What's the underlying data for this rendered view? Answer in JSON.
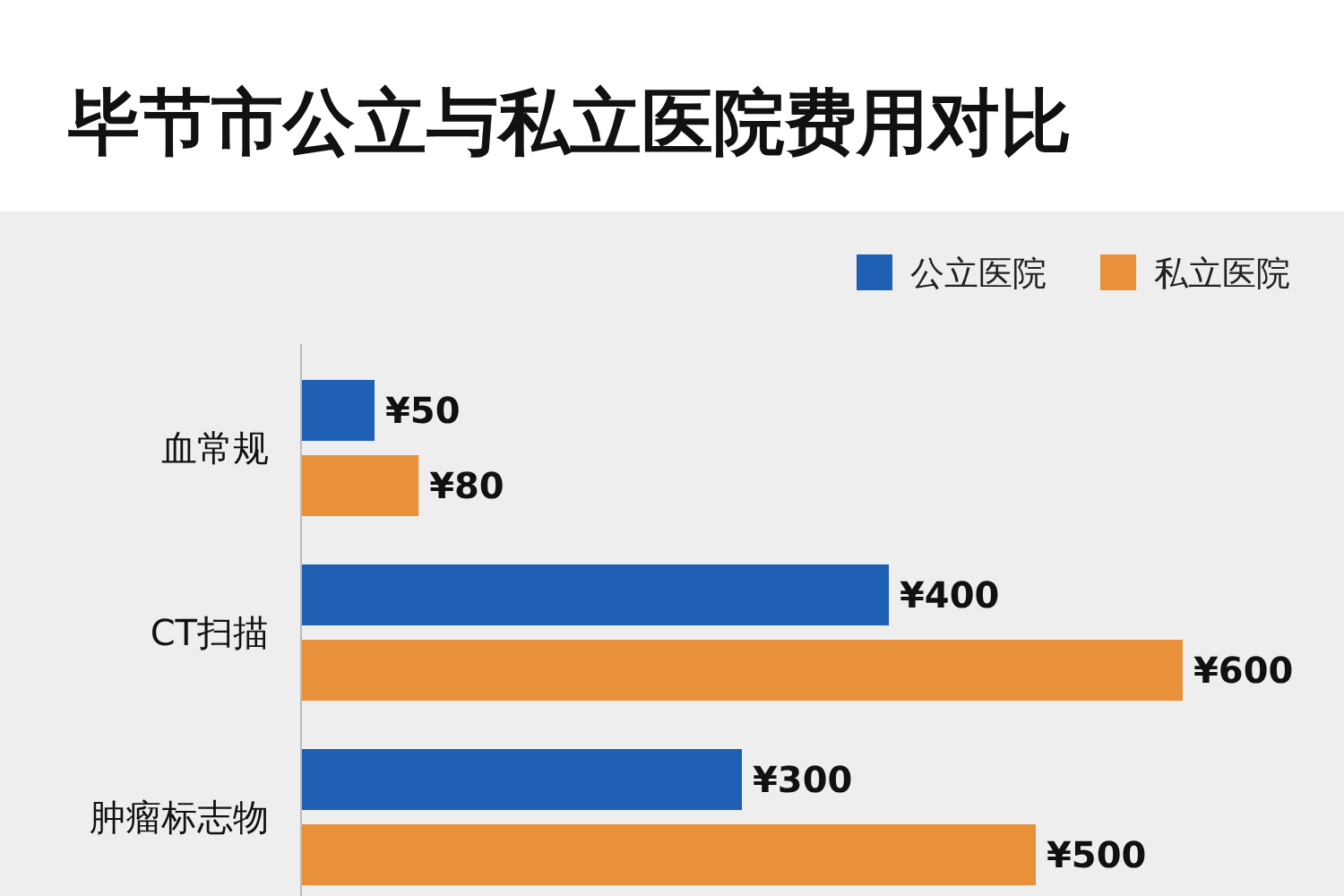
{
  "chart_data": {
    "type": "bar",
    "orientation": "horizontal",
    "title": "毕节市公立与私立医院费用对比",
    "categories": [
      "血常规",
      "CT扫描",
      "肿瘤标志物"
    ],
    "series": [
      {
        "name": "公立医院",
        "color": "#1f5fb4",
        "values": [
          50,
          400,
          300
        ],
        "value_labels": [
          "¥50",
          "¥400",
          "¥300"
        ]
      },
      {
        "name": "私立医院",
        "color": "#e8913a",
        "values": [
          80,
          600,
          500
        ],
        "value_labels": [
          "¥80",
          "¥600",
          "¥500"
        ]
      }
    ],
    "legend": "top right",
    "grid": false
  }
}
